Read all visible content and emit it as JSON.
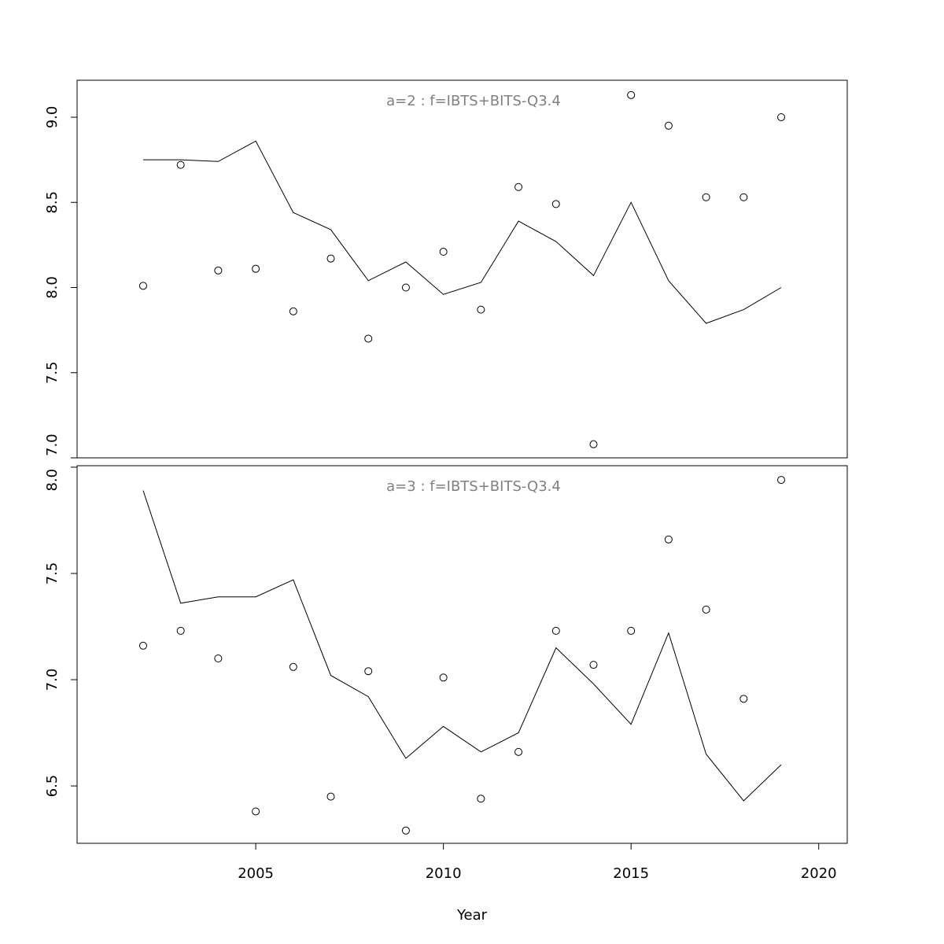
{
  "chart_data": [
    {
      "type": "scatter+line",
      "title": "a=2  :  f=IBTS+BITS-Q3.4",
      "xlabel": "",
      "ylabel": "",
      "x": [
        2002,
        2003,
        2004,
        2005,
        2006,
        2007,
        2008,
        2009,
        2010,
        2011,
        2012,
        2013,
        2014,
        2015,
        2016,
        2017,
        2018,
        2019
      ],
      "observed": [
        8.01,
        8.72,
        8.1,
        8.11,
        7.86,
        8.17,
        7.7,
        8.0,
        8.21,
        7.87,
        8.59,
        8.49,
        7.08,
        9.13,
        8.95,
        8.53,
        8.53,
        9.0
      ],
      "fitted": [
        8.75,
        8.75,
        8.74,
        8.86,
        8.44,
        8.34,
        8.04,
        8.15,
        7.96,
        8.03,
        8.39,
        8.27,
        8.07,
        8.5,
        8.04,
        7.79,
        7.87,
        8.0
      ],
      "xlim": [
        2000.24,
        2020.76
      ],
      "ylim": [
        7.0,
        9.217
      ],
      "yticks": [
        "7.0",
        "7.5",
        "8.0",
        "8.5",
        "9.0"
      ],
      "grid": false
    },
    {
      "type": "scatter+line",
      "title": "a=3  :  f=IBTS+BITS-Q3.4",
      "xlabel": "Year",
      "ylabel": "",
      "x": [
        2002,
        2003,
        2004,
        2005,
        2006,
        2007,
        2008,
        2009,
        2010,
        2011,
        2012,
        2013,
        2014,
        2015,
        2016,
        2017,
        2018,
        2019
      ],
      "observed": [
        7.16,
        7.23,
        7.1,
        6.38,
        7.06,
        6.45,
        7.04,
        6.29,
        7.01,
        6.44,
        6.66,
        7.23,
        7.07,
        7.23,
        7.66,
        7.33,
        6.91,
        7.94
      ],
      "fitted": [
        7.89,
        7.36,
        7.39,
        7.39,
        7.47,
        7.02,
        6.92,
        6.63,
        6.78,
        6.66,
        6.75,
        7.15,
        6.98,
        6.79,
        7.22,
        6.65,
        6.43,
        6.6
      ],
      "xlim": [
        2000.24,
        2020.76
      ],
      "ylim": [
        6.23,
        8.007
      ],
      "yticks": [
        "6.5",
        "7.0",
        "7.5",
        "8.0"
      ],
      "xticks": [
        "2005",
        "2010",
        "2015",
        "2020"
      ],
      "grid": false
    }
  ],
  "colors": {
    "axis": "#000000",
    "title": "#808080",
    "marks": "#000000"
  }
}
